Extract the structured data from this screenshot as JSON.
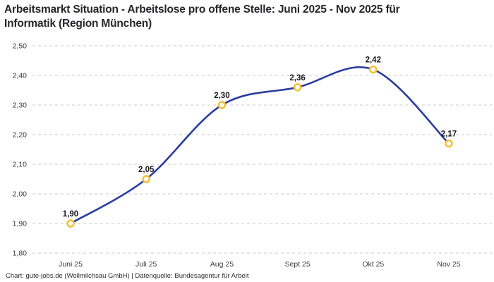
{
  "header": {
    "title": "Arbeitsmarkt Situation - Arbeitslose pro offene Stelle: Juni 2025 - Nov 2025 für Informatik (Region München)"
  },
  "footer": {
    "attribution": "Chart: gute-jobs.de (Wollmilchsau GmbH) | Datenquelle: Bundesagentur für Arbeit"
  },
  "colors": {
    "line": "#2b3d9f",
    "marker_stroke": "#f5c033",
    "marker_fill": "#ffffff",
    "grid": "#c9c9c9",
    "title_text": "#26262b",
    "axis_text": "#3a3a3a",
    "label_text": "#15151f",
    "background": "#ffffff"
  },
  "chart_data": {
    "type": "line",
    "title": "Arbeitsmarkt Situation - Arbeitslose pro offene Stelle: Juni 2025 - Nov 2025 für Informatik (Region München)",
    "source": "Chart: gute-jobs.de (Wollmilchsau GmbH) | Datenquelle: Bundesagentur für Arbeit",
    "categories": [
      "Juni 25",
      "Juli 25",
      "Aug 25",
      "Sept 25",
      "Okt 25",
      "Nov 25"
    ],
    "values": [
      1.9,
      2.05,
      2.3,
      2.36,
      2.42,
      2.17
    ],
    "value_labels": [
      "1,90",
      "2,05",
      "2,30",
      "2,36",
      "2,42",
      "2,17"
    ],
    "y_ticks": [
      {
        "value": 2.5,
        "label": "2,50"
      },
      {
        "value": 2.4,
        "label": "2,40"
      },
      {
        "value": 2.3,
        "label": "2,30"
      },
      {
        "value": 2.2,
        "label": "2,20"
      },
      {
        "value": 2.1,
        "label": "2,10"
      },
      {
        "value": 2.0,
        "label": "2,00"
      },
      {
        "value": 1.9,
        "label": "1,90"
      },
      {
        "value": 1.8,
        "label": "1,80"
      }
    ],
    "ylim": [
      1.8,
      2.5
    ],
    "xlabel": "",
    "ylabel": "",
    "grid": "horizontal-dashed",
    "legend": "none",
    "line_style": "smooth",
    "marker": "open-circle"
  }
}
